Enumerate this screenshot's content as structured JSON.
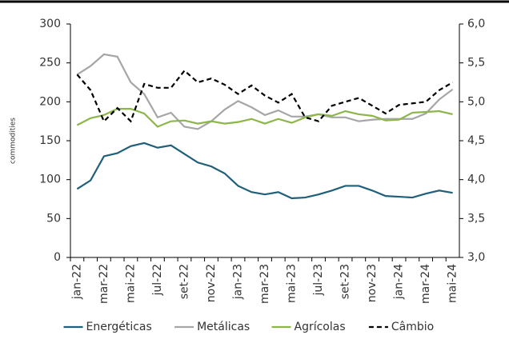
{
  "chart_data": {
    "type": "line",
    "y_label": "commodities",
    "categories": [
      "jan-22",
      null,
      "mar-22",
      null,
      "mai-22",
      null,
      "jul-22",
      null,
      "set-22",
      null,
      "nov-22",
      null,
      "jan-23",
      null,
      "mar-23",
      null,
      "mai-23",
      null,
      "jul-23",
      null,
      "set-23",
      null,
      "nov-23",
      null,
      "jan-24",
      null,
      "mar-24",
      null,
      "mai-24"
    ],
    "series": [
      {
        "name": "Energéticas",
        "color": "#1f5f7a",
        "values": [
          88,
          99,
          130,
          134,
          143,
          147,
          141,
          144,
          133,
          122,
          117,
          108,
          92,
          84,
          81,
          84,
          76,
          77,
          81,
          86,
          92,
          92,
          86,
          79,
          78,
          77,
          82,
          86,
          83
        ]
      },
      {
        "name": "Metálicas",
        "color": "#a6a6a6",
        "values": [
          235,
          246,
          261,
          258,
          225,
          210,
          180,
          186,
          168,
          165,
          175,
          190,
          201,
          193,
          183,
          189,
          181,
          181,
          184,
          180,
          180,
          175,
          177,
          178,
          178,
          178,
          185,
          203,
          216
        ]
      },
      {
        "name": "Agrícolas",
        "color": "#8db64a",
        "values": [
          170,
          179,
          183,
          191,
          191,
          185,
          168,
          175,
          176,
          172,
          175,
          172,
          174,
          178,
          172,
          178,
          173,
          180,
          184,
          182,
          188,
          184,
          182,
          176,
          177,
          186,
          187,
          188,
          184
        ]
      },
      {
        "name": "Câmbio",
        "color": "#000000",
        "dashed": true,
        "axis": "y2",
        "values": [
          5.35,
          5.15,
          4.75,
          4.92,
          4.75,
          5.23,
          5.18,
          5.18,
          5.4,
          5.25,
          5.3,
          5.22,
          5.1,
          5.21,
          5.08,
          4.99,
          5.1,
          4.8,
          4.75,
          4.95,
          5.0,
          5.05,
          4.95,
          4.85,
          4.96,
          4.98,
          5.0,
          5.15,
          5.25
        ]
      }
    ],
    "ylim": [
      0,
      300
    ],
    "yticks": [
      0,
      50,
      100,
      150,
      200,
      250,
      300
    ],
    "y2lim": [
      3,
      6
    ],
    "y2ticks": [
      {
        "value": 3,
        "label": "3,0"
      },
      {
        "value": 3.5,
        "label": "3,5"
      },
      {
        "value": 4,
        "label": "4,0"
      },
      {
        "value": 4.5,
        "label": "4,5"
      },
      {
        "value": 5,
        "label": "5,0"
      },
      {
        "value": 5.5,
        "label": "5,5"
      },
      {
        "value": 6,
        "label": "6,0"
      }
    ],
    "legend": "bottom"
  }
}
